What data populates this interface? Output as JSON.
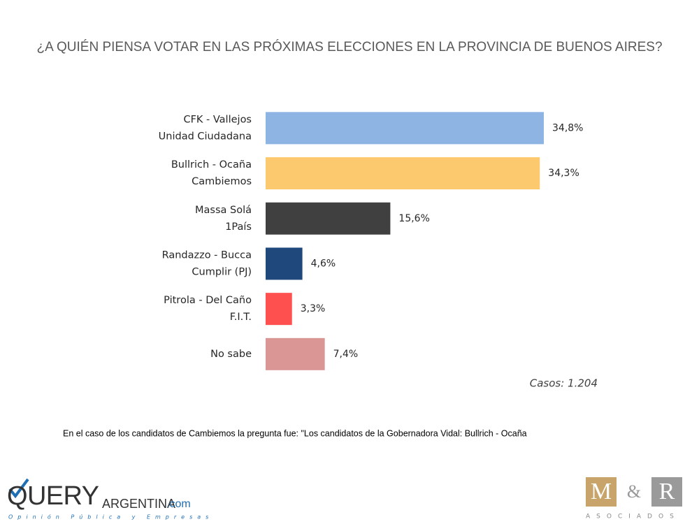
{
  "chart_data": {
    "type": "hbar",
    "title": "¿A QUIÉN PIENSA VOTAR EN LAS PRÓXIMAS ELECCIONES EN LA PROVINCIA DE BUENOS AIRES?",
    "categories": [
      [
        "CFK - Vallejos",
        "Unidad Ciudadana"
      ],
      [
        "Bullrich - Ocaña",
        "Cambiemos"
      ],
      [
        "Massa Solá",
        "1País"
      ],
      [
        "Randazzo - Bucca",
        "Cumplir (PJ)"
      ],
      [
        "Pitrola - Del Caño",
        "F.I.T."
      ],
      [
        "No sabe"
      ]
    ],
    "values": [
      34.8,
      34.3,
      15.6,
      4.6,
      3.3,
      7.4
    ],
    "value_labels": [
      "34,8%",
      "34,3%",
      "15,6%",
      "4,6%",
      "3,3%",
      "7,4%"
    ],
    "colors": [
      "#8eb4e3",
      "#fdc96e",
      "#404040",
      "#1f497d",
      "#ff5050",
      "#d99694"
    ],
    "note": "Casos: 1.204",
    "footnote": "En el caso de los candidatos de Cambiemos la pregunta fue: \"Los candidatos de la Gobernadora Vidal: Bullrich - Ocaña"
  },
  "logos": {
    "query": [
      "QUERY",
      "ARGENTINA",
      ".com"
    ],
    "query_tagline": "Opinión Pública y Empresas",
    "mr": [
      "M",
      "&",
      "R"
    ],
    "mr_tagline": "ASOCIADOS"
  }
}
